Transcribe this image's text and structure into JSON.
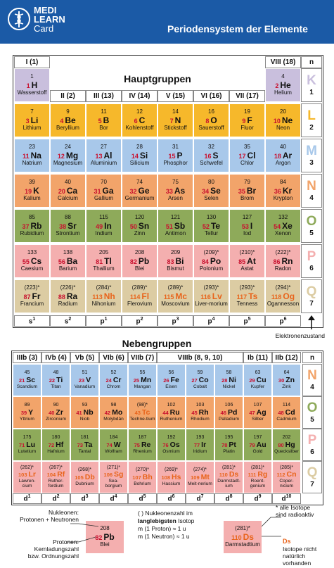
{
  "header": {
    "logo": [
      "MEDI",
      "LEARN",
      "Card"
    ],
    "title": "Periodensystem der Elemente"
  },
  "main": {
    "title": "Hauptgruppen",
    "groups": [
      "I (1)",
      "II (2)",
      "III (13)",
      "IV (14)",
      "V (15)",
      "VI (16)",
      "VII (17)",
      "VIII (18)"
    ],
    "shell_header": "n",
    "shells": [
      {
        "letter": "K",
        "number": 1,
        "color": "#c9bfdd"
      },
      {
        "letter": "L",
        "number": 2,
        "color": "#f6b82b"
      },
      {
        "letter": "M",
        "number": 3,
        "color": "#a8c8ea"
      },
      {
        "letter": "N",
        "number": 4,
        "color": "#f2a46a"
      },
      {
        "letter": "O",
        "number": 5,
        "color": "#8eaa5a"
      },
      {
        "letter": "P",
        "number": 6,
        "color": "#f4afaf"
      },
      {
        "letter": "Q",
        "number": 7,
        "color": "#dccca3"
      }
    ],
    "rows": [
      [
        {
          "mass": 1,
          "z": 1,
          "symbol": "H",
          "name": "Wasserstoff"
        },
        null,
        null,
        null,
        null,
        null,
        null,
        {
          "mass": 4,
          "z": 2,
          "symbol": "He",
          "name": "Helium"
        }
      ],
      [
        {
          "mass": 7,
          "z": 3,
          "symbol": "Li",
          "name": "Lithium"
        },
        {
          "mass": 9,
          "z": 4,
          "symbol": "Be",
          "name": "Beryllium"
        },
        {
          "mass": 11,
          "z": 5,
          "symbol": "B",
          "name": "Bor"
        },
        {
          "mass": 12,
          "z": 6,
          "symbol": "C",
          "name": "Kohlenstoff"
        },
        {
          "mass": 14,
          "z": 7,
          "symbol": "N",
          "name": "Stickstoff"
        },
        {
          "mass": 16,
          "z": 8,
          "symbol": "O",
          "name": "Sauerstoff"
        },
        {
          "mass": 19,
          "z": 9,
          "symbol": "F",
          "name": "Fluor"
        },
        {
          "mass": 20,
          "z": 10,
          "symbol": "Ne",
          "name": "Neon"
        }
      ],
      [
        {
          "mass": 23,
          "z": 11,
          "symbol": "Na",
          "name": "Natrium"
        },
        {
          "mass": 24,
          "z": 12,
          "symbol": "Mg",
          "name": "Magnesium"
        },
        {
          "mass": 27,
          "z": 13,
          "symbol": "Al",
          "name": "Aluminium"
        },
        {
          "mass": 28,
          "z": 14,
          "symbol": "Si",
          "name": "Silicium"
        },
        {
          "mass": 31,
          "z": 15,
          "symbol": "P",
          "name": "Phosphor"
        },
        {
          "mass": 32,
          "z": 16,
          "symbol": "S",
          "name": "Schwefel"
        },
        {
          "mass": 35,
          "z": 17,
          "symbol": "Cl",
          "name": "Chlor"
        },
        {
          "mass": 40,
          "z": 18,
          "symbol": "Ar",
          "name": "Argon"
        }
      ],
      [
        {
          "mass": 39,
          "z": 19,
          "symbol": "K",
          "name": "Kalium"
        },
        {
          "mass": 40,
          "z": 20,
          "symbol": "Ca",
          "name": "Calcium"
        },
        {
          "mass": 70,
          "z": 31,
          "symbol": "Ga",
          "name": "Gallium"
        },
        {
          "mass": 74,
          "z": 32,
          "symbol": "Ge",
          "name": "Germanium"
        },
        {
          "mass": 75,
          "z": 33,
          "symbol": "As",
          "name": "Arsen"
        },
        {
          "mass": 80,
          "z": 34,
          "symbol": "Se",
          "name": "Selen"
        },
        {
          "mass": 79,
          "z": 35,
          "symbol": "Br",
          "name": "Brom"
        },
        {
          "mass": 84,
          "z": 36,
          "symbol": "Kr",
          "name": "Krypton"
        }
      ],
      [
        {
          "mass": 85,
          "z": 37,
          "symbol": "Rb",
          "name": "Rubidium"
        },
        {
          "mass": 88,
          "z": 38,
          "symbol": "Sr",
          "name": "Strontium"
        },
        {
          "mass": 115,
          "z": 49,
          "symbol": "In",
          "name": "Indium"
        },
        {
          "mass": 120,
          "z": 50,
          "symbol": "Sn",
          "name": "Zinn"
        },
        {
          "mass": 121,
          "z": 51,
          "symbol": "Sb",
          "name": "Antimon"
        },
        {
          "mass": 130,
          "z": 52,
          "symbol": "Te",
          "name": "Tellur"
        },
        {
          "mass": 127,
          "z": 53,
          "symbol": "I",
          "name": "Iod"
        },
        {
          "mass": 132,
          "z": 54,
          "symbol": "Xe",
          "name": "Xenon"
        }
      ],
      [
        {
          "mass": 133,
          "z": 55,
          "symbol": "Cs",
          "name": "Caesium"
        },
        {
          "mass": 138,
          "z": 56,
          "symbol": "Ba",
          "name": "Barium"
        },
        {
          "mass": 205,
          "z": 81,
          "symbol": "Tl",
          "name": "Thallium"
        },
        {
          "mass": 208,
          "z": 82,
          "symbol": "Pb",
          "name": "Blei"
        },
        {
          "mass": 209,
          "z": 83,
          "symbol": "Bi",
          "name": "Bismut"
        },
        {
          "mass": "(209)*",
          "z": 84,
          "symbol": "Po",
          "name": "Polonium"
        },
        {
          "mass": "(210)*",
          "z": 85,
          "symbol": "At",
          "name": "Astat"
        },
        {
          "mass": "(222)*",
          "z": 86,
          "symbol": "Rn",
          "name": "Radon"
        }
      ],
      [
        {
          "mass": "(223)*",
          "z": 87,
          "symbol": "Fr",
          "name": "Francium"
        },
        {
          "mass": "(226)*",
          "z": 88,
          "symbol": "Ra",
          "name": "Radium"
        },
        {
          "mass": "(284)*",
          "z": 113,
          "symbol": "Nh",
          "name": "Nihonium",
          "synthetic": true
        },
        {
          "mass": "(289)*",
          "z": 114,
          "symbol": "Fl",
          "name": "Flerovium",
          "synthetic": true
        },
        {
          "mass": "(289)*",
          "z": 115,
          "symbol": "Mc",
          "name": "Moscovium",
          "synthetic": true
        },
        {
          "mass": "(293)*",
          "z": 116,
          "symbol": "Lv",
          "name": "Liver-morium",
          "synthetic": true
        },
        {
          "mass": "(293)*",
          "z": 117,
          "symbol": "Ts",
          "name": "Tenness",
          "synthetic": true
        },
        {
          "mass": "(294)*",
          "z": 118,
          "symbol": "Og",
          "name": "Ogannesson",
          "synthetic": true
        }
      ]
    ],
    "electrons": [
      [
        "s",
        "1"
      ],
      [
        "s",
        "2"
      ],
      [
        "p",
        "1"
      ],
      [
        "p",
        "2"
      ],
      [
        "p",
        "3"
      ],
      [
        "p",
        "4"
      ],
      [
        "p",
        "5"
      ],
      [
        "p",
        "6"
      ]
    ],
    "electrons_label": "Elektronenzustand"
  },
  "transition": {
    "title": "Nebengruppen",
    "groups": [
      "IIIb (3)",
      "IVb (4)",
      "Vb (5)",
      "VIb (6)",
      "VIIb (7)",
      "VIIIb (8, 9, 10)",
      "Ib (11)",
      "IIb (12)"
    ],
    "shell_header": "n",
    "shells": [
      {
        "letter": "N",
        "number": 4,
        "color": "#f2a46a"
      },
      {
        "letter": "O",
        "number": 5,
        "color": "#8eaa5a"
      },
      {
        "letter": "P",
        "number": 6,
        "color": "#f4afaf"
      },
      {
        "letter": "Q",
        "number": 7,
        "color": "#dccca3"
      }
    ],
    "row_colors": [
      "#a8c8ea",
      "#f2a46a",
      "#8eaa5a",
      "#f4afaf"
    ],
    "rows": [
      [
        {
          "mass": 45,
          "z": 21,
          "symbol": "Sc",
          "name": "Scandium"
        },
        {
          "mass": 48,
          "z": 22,
          "symbol": "Ti",
          "name": "Titan"
        },
        {
          "mass": 51,
          "z": 23,
          "symbol": "V",
          "name": "Vanadium"
        },
        {
          "mass": 52,
          "z": 24,
          "symbol": "Cr",
          "name": "Chrom"
        },
        {
          "mass": 55,
          "z": 25,
          "symbol": "Mn",
          "name": "Mangan"
        },
        {
          "mass": 56,
          "z": 26,
          "symbol": "Fe",
          "name": "Eisen"
        },
        {
          "mass": 59,
          "z": 27,
          "symbol": "Co",
          "name": "Cobalt"
        },
        {
          "mass": 58,
          "z": 28,
          "symbol": "Ni",
          "name": "Nickel"
        },
        {
          "mass": 63,
          "z": 29,
          "symbol": "Cu",
          "name": "Kupfer"
        },
        {
          "mass": 64,
          "z": 30,
          "symbol": "Zn",
          "name": "Zink"
        }
      ],
      [
        {
          "mass": 89,
          "z": 39,
          "symbol": "Y",
          "name": "Yttrium"
        },
        {
          "mass": 90,
          "z": 40,
          "symbol": "Zr",
          "name": "Zirconium"
        },
        {
          "mass": 93,
          "z": 41,
          "symbol": "Nb",
          "name": "Niob"
        },
        {
          "mass": 98,
          "z": 42,
          "symbol": "Mo",
          "name": "Molybdän"
        },
        {
          "mass": "(98)*",
          "z": 43,
          "symbol": "Tc",
          "name": "Techne-tium",
          "synthetic": true
        },
        {
          "mass": 102,
          "z": 44,
          "symbol": "Ru",
          "name": "Ruthenium"
        },
        {
          "mass": 103,
          "z": 45,
          "symbol": "Rh",
          "name": "Rhodium"
        },
        {
          "mass": 106,
          "z": 46,
          "symbol": "Pd",
          "name": "Palladium"
        },
        {
          "mass": 107,
          "z": 47,
          "symbol": "Ag",
          "name": "Silber"
        },
        {
          "mass": 114,
          "z": 48,
          "symbol": "Cd",
          "name": "Cadmium"
        }
      ],
      [
        {
          "mass": 175,
          "z": 71,
          "symbol": "Lu",
          "name": "Lutetium"
        },
        {
          "mass": 180,
          "z": 72,
          "symbol": "Hf",
          "name": "Hafnium"
        },
        {
          "mass": 181,
          "z": 73,
          "symbol": "Ta",
          "name": "Tantal"
        },
        {
          "mass": 184,
          "z": 74,
          "symbol": "W",
          "name": "Wolfram"
        },
        {
          "mass": 187,
          "z": 75,
          "symbol": "Re",
          "name": "Rhenium"
        },
        {
          "mass": 192,
          "z": 76,
          "symbol": "Os",
          "name": "Osmium"
        },
        {
          "mass": 193,
          "z": 77,
          "symbol": "Ir",
          "name": "Iridium"
        },
        {
          "mass": 195,
          "z": 78,
          "symbol": "Pt",
          "name": "Platin"
        },
        {
          "mass": 197,
          "z": 79,
          "symbol": "Au",
          "name": "Gold"
        },
        {
          "mass": 202,
          "z": 80,
          "symbol": "Hg",
          "name": "Quecksilber"
        }
      ],
      [
        {
          "mass": "(262)*",
          "z": 103,
          "symbol": "Lr",
          "name": "Lawren-cium",
          "synthetic": true
        },
        {
          "mass": "(267)*",
          "z": 104,
          "symbol": "Rf",
          "name": "Ruther-fordium",
          "synthetic": true
        },
        {
          "mass": "(268)*",
          "z": 105,
          "symbol": "Db",
          "name": "Dubnium",
          "synthetic": true
        },
        {
          "mass": "(271)*",
          "z": 106,
          "symbol": "Sg",
          "name": "Sea-borgium",
          "synthetic": true
        },
        {
          "mass": "(270)*",
          "z": 107,
          "symbol": "Bh",
          "name": "Bohrium",
          "synthetic": true
        },
        {
          "mass": "(269)*",
          "z": 108,
          "symbol": "Hs",
          "name": "Hassium",
          "synthetic": true
        },
        {
          "mass": "(274)*",
          "z": 109,
          "symbol": "Mt",
          "name": "Meit-nerium",
          "synthetic": true
        },
        {
          "mass": "(281)*",
          "z": 110,
          "symbol": "Ds",
          "name": "Darmstadt-ium",
          "synthetic": true
        },
        {
          "mass": "(281)*",
          "z": 111,
          "symbol": "Rg",
          "name": "Roent-genium",
          "synthetic": true
        },
        {
          "mass": "(285)*",
          "z": 112,
          "symbol": "Cn",
          "name": "Coper-nicium",
          "synthetic": true
        }
      ]
    ],
    "electrons": [
      [
        "d",
        "1"
      ],
      [
        "d",
        "2"
      ],
      [
        "d",
        "3"
      ],
      [
        "d",
        "4"
      ],
      [
        "d",
        "5"
      ],
      [
        "d",
        "6"
      ],
      [
        "d",
        "7"
      ],
      [
        "d",
        "8"
      ],
      [
        "d",
        "9"
      ],
      [
        "d",
        "10"
      ]
    ]
  },
  "legend": {
    "nucleons": [
      "Nukleonen:",
      "Protonen + Neutronen"
    ],
    "protons": [
      "Protonen:",
      "Kernladungszahl",
      "bzw. Ordnungszahl"
    ],
    "example": {
      "mass": 208,
      "z": 82,
      "symbol": "Pb",
      "name": "Blei"
    },
    "notes": [
      "( ) Nukleonenzahl im",
      {
        "bold": "langlebigsten",
        "rest": " Isotop"
      },
      "m (1 Proton) ≈ 1 u",
      "m (1 Neutron) ≈ 1 u"
    ],
    "radioactive": [
      "* alle Isotope",
      "sind radioaktiv"
    ],
    "example2": {
      "mass": "(281)*",
      "z": 110,
      "symbol": "Ds",
      "name": "Darmstadtium",
      "synthetic": true
    },
    "synthetic_symbol": "Ds",
    "synthetic_note": [
      "Isotope nicht",
      "natürlich",
      "vorhanden"
    ],
    "color": "#f4afaf"
  }
}
